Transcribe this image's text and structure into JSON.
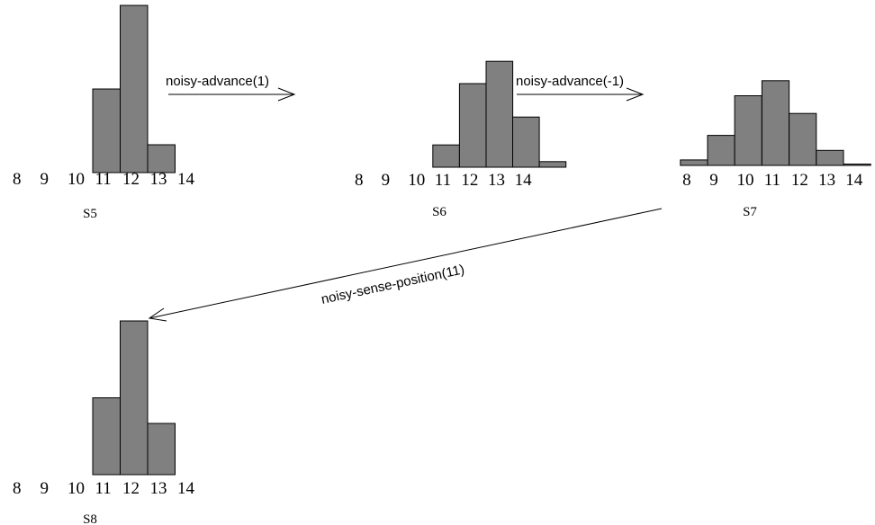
{
  "diagram": {
    "bar_color": "#808080",
    "panels": [
      {
        "id": "s5",
        "label": "S5",
        "tick_labels": [
          "8",
          "9",
          "10",
          "11",
          "12",
          "13",
          "14"
        ],
        "bars": [
          {
            "x": 10,
            "value": 0.3
          },
          {
            "x": 11,
            "value": 0.6
          },
          {
            "x": 12,
            "value": 0.1
          }
        ]
      },
      {
        "id": "s6",
        "label": "S6",
        "tick_labels": [
          "8",
          "9",
          "10",
          "11",
          "12",
          "13",
          "14"
        ],
        "bars": [
          {
            "x": 10,
            "value": 0.08
          },
          {
            "x": 11,
            "value": 0.3
          },
          {
            "x": 12,
            "value": 0.38
          },
          {
            "x": 13,
            "value": 0.18
          },
          {
            "x": 14,
            "value": 0.02
          }
        ]
      },
      {
        "id": "s7",
        "label": "S7",
        "tick_labels": [
          "8",
          "9",
          "10",
          "11",
          "12",
          "13",
          "14"
        ],
        "bars": [
          {
            "x": 7.5,
            "value": 0.016
          },
          {
            "x": 8.5,
            "value": 0.088
          },
          {
            "x": 9.5,
            "value": 0.204
          },
          {
            "x": 10.5,
            "value": 0.248
          },
          {
            "x": 11.5,
            "value": 0.152
          },
          {
            "x": 12.5,
            "value": 0.044
          },
          {
            "x": 13.5,
            "value": 0.004
          }
        ]
      },
      {
        "id": "s8",
        "label": "S8",
        "tick_labels": [
          "8",
          "9",
          "10",
          "11",
          "12",
          "13",
          "14"
        ],
        "bars": [
          {
            "x": 10,
            "value": 0.3
          },
          {
            "x": 11,
            "value": 0.6
          },
          {
            "x": 12,
            "value": 0.2
          }
        ]
      }
    ],
    "arrows": [
      {
        "id": "s5-to-s6",
        "label": "noisy-advance(1)"
      },
      {
        "id": "s6-to-s7",
        "label": "noisy-advance(-1)"
      },
      {
        "id": "s7-to-s8",
        "label": "noisy-sense-position(11)"
      }
    ]
  }
}
